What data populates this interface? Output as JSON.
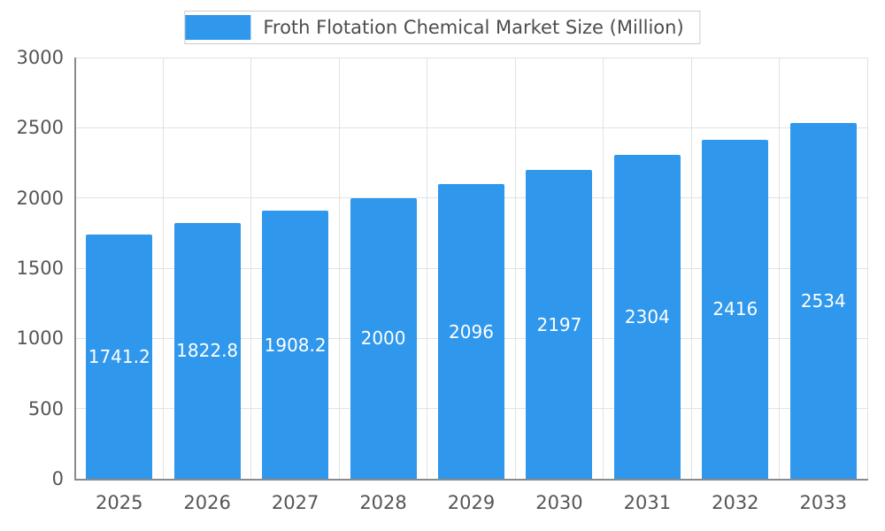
{
  "chart_data": {
    "type": "bar",
    "title": "Froth Flotation Chemical Market Size (Million)",
    "categories": [
      "2025",
      "2026",
      "2027",
      "2028",
      "2029",
      "2030",
      "2031",
      "2032",
      "2033"
    ],
    "values": [
      1741.2,
      1822.8,
      1908.2,
      2000,
      2096,
      2197,
      2304,
      2416,
      2534
    ],
    "value_labels": [
      "1741.2",
      "1822.8",
      "1908.2",
      "2000",
      "2096",
      "2197",
      "2304",
      "2416",
      "2534"
    ],
    "xlabel": "",
    "ylabel": "",
    "ylim": [
      0,
      3000
    ],
    "ytick_step": 500,
    "ytick_labels": [
      "0",
      "500",
      "1000",
      "1500",
      "2000",
      "2500",
      "3000"
    ],
    "grid": true,
    "legend_position": "top-center",
    "bar_color": "#2f97ec",
    "bar_label_color": "#ffffff",
    "axis_text_color": "#555555",
    "grid_color": "#e2e2e2",
    "axis_line_color": "#8a8a8a"
  }
}
